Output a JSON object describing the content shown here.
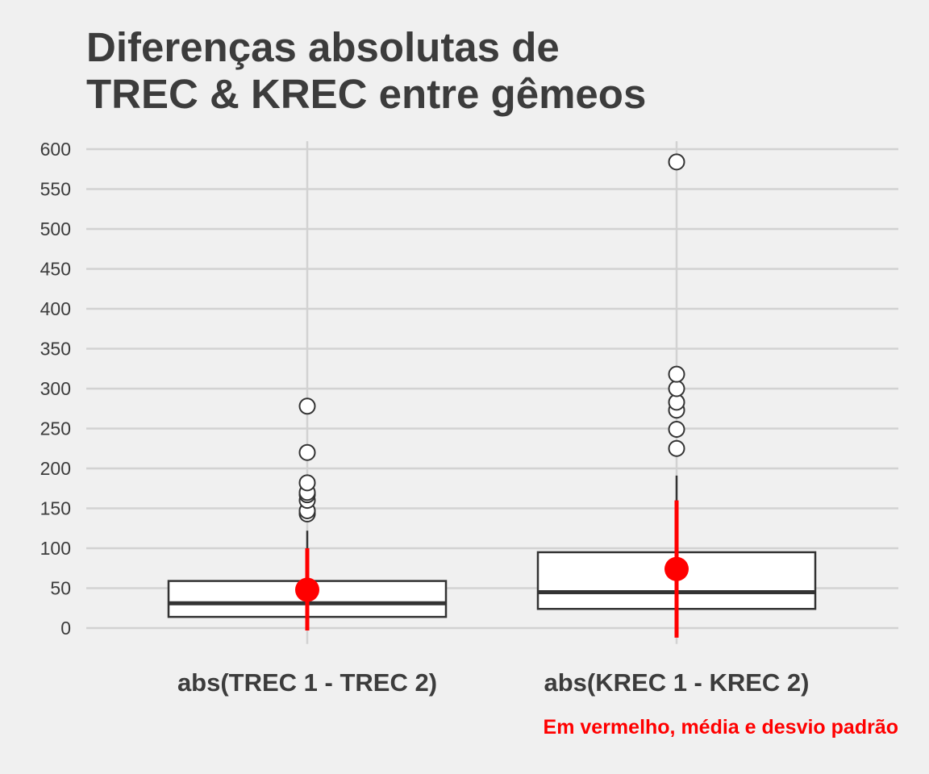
{
  "title_lines": [
    "Diferenças absolutas de",
    "TREC & KREC entre gêmeos"
  ],
  "caption": "Em vermelho, média e desvio padrão",
  "colors": {
    "background": "#f0f0f0",
    "grid": "#d2d2d2",
    "box_fill": "#ffffff",
    "box_line": "#333333",
    "mean_sd": "#ff0000",
    "text": "#3c3c3c"
  },
  "chart_data": {
    "type": "boxplot",
    "title": "Diferenças absolutas de TREC & KREC entre gêmeos",
    "xlabel": "",
    "ylabel": "",
    "ylim": [
      -20,
      610
    ],
    "yticks": [
      0,
      50,
      100,
      150,
      200,
      250,
      300,
      350,
      400,
      450,
      500,
      550,
      600
    ],
    "grid": true,
    "categories": [
      "abs(TREC 1 - TREC 2)",
      "abs(KREC 1 - KREC 2)"
    ],
    "boxes": [
      {
        "q1": 14,
        "median": 31,
        "q3": 59,
        "whisker_low": 0,
        "whisker_high": 122,
        "outliers": [
          143,
          147,
          160,
          167,
          170,
          182,
          220,
          278
        ],
        "mean": 48,
        "sd_low": -3,
        "sd_high": 100
      },
      {
        "q1": 24,
        "median": 45,
        "q3": 95,
        "whisker_low": 0,
        "whisker_high": 191,
        "outliers": [
          225,
          249,
          273,
          283,
          300,
          318,
          584
        ],
        "mean": 74,
        "sd_low": -12,
        "sd_high": 160
      }
    ]
  }
}
